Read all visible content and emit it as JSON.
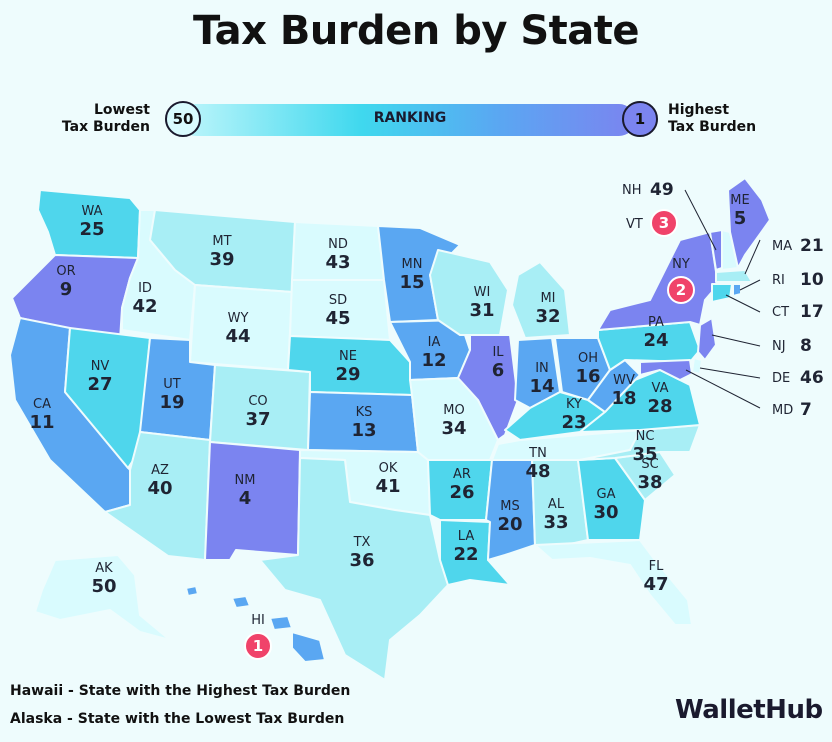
{
  "title": "Tax Burden by State",
  "legend": {
    "lowest_label_line1": "Lowest",
    "lowest_label_line2": "Tax Burden",
    "highest_label_line1": "Highest",
    "highest_label_line2": "Tax Burden",
    "bar_label": "RANKING",
    "low_rank": "50",
    "high_rank": "1"
  },
  "colors": {
    "background": "#eefcfd",
    "lightest": "#d9fbfe",
    "light": "#a8eef5",
    "mid": "#4fd6ec",
    "blue": "#5aa7f2",
    "purple": "#7b84f0",
    "badge": "#f0436a"
  },
  "states": [
    {
      "abbr": "WA",
      "rank": "25"
    },
    {
      "abbr": "OR",
      "rank": "9"
    },
    {
      "abbr": "CA",
      "rank": "11"
    },
    {
      "abbr": "ID",
      "rank": "42"
    },
    {
      "abbr": "NV",
      "rank": "27"
    },
    {
      "abbr": "MT",
      "rank": "39"
    },
    {
      "abbr": "WY",
      "rank": "44"
    },
    {
      "abbr": "UT",
      "rank": "19"
    },
    {
      "abbr": "AZ",
      "rank": "40"
    },
    {
      "abbr": "CO",
      "rank": "37"
    },
    {
      "abbr": "NM",
      "rank": "4"
    },
    {
      "abbr": "ND",
      "rank": "43"
    },
    {
      "abbr": "SD",
      "rank": "45"
    },
    {
      "abbr": "NE",
      "rank": "29"
    },
    {
      "abbr": "KS",
      "rank": "13"
    },
    {
      "abbr": "OK",
      "rank": "41"
    },
    {
      "abbr": "TX",
      "rank": "36"
    },
    {
      "abbr": "MN",
      "rank": "15"
    },
    {
      "abbr": "IA",
      "rank": "12"
    },
    {
      "abbr": "MO",
      "rank": "34"
    },
    {
      "abbr": "AR",
      "rank": "26"
    },
    {
      "abbr": "LA",
      "rank": "22"
    },
    {
      "abbr": "WI",
      "rank": "31"
    },
    {
      "abbr": "IL",
      "rank": "6"
    },
    {
      "abbr": "MS",
      "rank": "20"
    },
    {
      "abbr": "MI",
      "rank": "32"
    },
    {
      "abbr": "IN",
      "rank": "14"
    },
    {
      "abbr": "KY",
      "rank": "23"
    },
    {
      "abbr": "TN",
      "rank": "48"
    },
    {
      "abbr": "AL",
      "rank": "33"
    },
    {
      "abbr": "OH",
      "rank": "16"
    },
    {
      "abbr": "WV",
      "rank": "18"
    },
    {
      "abbr": "VA",
      "rank": "28"
    },
    {
      "abbr": "NC",
      "rank": "35"
    },
    {
      "abbr": "SC",
      "rank": "38"
    },
    {
      "abbr": "GA",
      "rank": "30"
    },
    {
      "abbr": "FL",
      "rank": "47"
    },
    {
      "abbr": "PA",
      "rank": "24"
    },
    {
      "abbr": "NY",
      "rank": "2"
    },
    {
      "abbr": "ME",
      "rank": "5"
    },
    {
      "abbr": "AK",
      "rank": "50"
    },
    {
      "abbr": "HI",
      "rank": "1"
    }
  ],
  "callouts": [
    {
      "abbr": "NH",
      "rank": "49"
    },
    {
      "abbr": "VT",
      "rank": "3"
    },
    {
      "abbr": "MA",
      "rank": "21"
    },
    {
      "abbr": "RI",
      "rank": "10"
    },
    {
      "abbr": "CT",
      "rank": "17"
    },
    {
      "abbr": "NJ",
      "rank": "8"
    },
    {
      "abbr": "DE",
      "rank": "46"
    },
    {
      "abbr": "MD",
      "rank": "7"
    }
  ],
  "footnotes": {
    "line1": "Hawaii - State with the Highest Tax Burden",
    "line2": "Alaska - State with the Lowest Tax Burden"
  },
  "brand": "WalletHub"
}
